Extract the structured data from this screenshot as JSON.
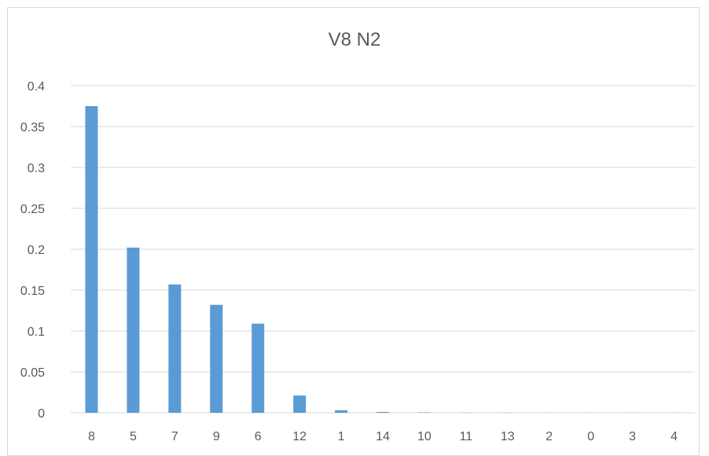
{
  "chart_data": {
    "type": "bar",
    "title": "V8 N2",
    "xlabel": "",
    "ylabel": "",
    "categories": [
      "8",
      "5",
      "7",
      "9",
      "6",
      "12",
      "1",
      "14",
      "10",
      "11",
      "13",
      "2",
      "0",
      "3",
      "4"
    ],
    "values": [
      0.375,
      0.202,
      0.157,
      0.132,
      0.109,
      0.021,
      0.003,
      0.001,
      0.0005,
      0.0002,
      0.0002,
      0.0001,
      0.0001,
      0.0001,
      0.0001
    ],
    "y_ticks": [
      "0",
      "0.05",
      "0.1",
      "0.15",
      "0.2",
      "0.25",
      "0.3",
      "0.35",
      "0.4"
    ],
    "ylim": [
      0,
      0.4
    ],
    "grid": true,
    "legend": false,
    "bar_color": "#5b9bd5",
    "grid_color": "#d9d9d9"
  }
}
